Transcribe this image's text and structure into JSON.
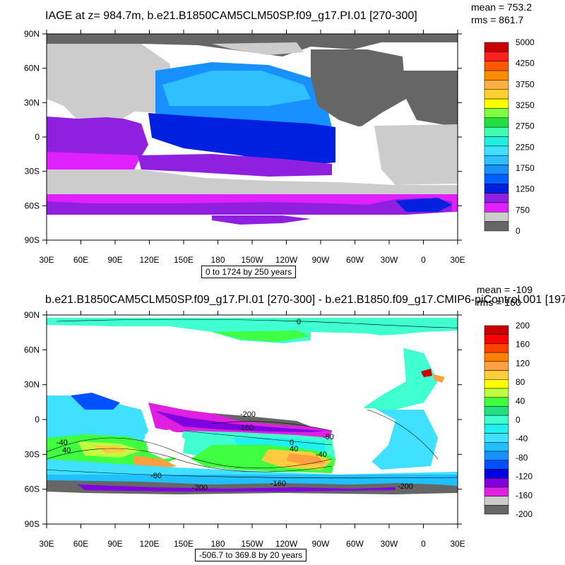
{
  "top_panel": {
    "title": "IAGE at z= 984.7m, b.e21.B1850CAM5CLM50SP.f09_g17.PI.01 [270-300]",
    "mean_text": "mean = 753.2",
    "rms_text": "rms = 861.7",
    "range_text": "0 to 1724 by 250 years",
    "colorbar": {
      "labels": [
        "5000",
        "4250",
        "3750",
        "3250",
        "2750",
        "2250",
        "1750",
        "1250",
        "750",
        "0"
      ],
      "colors": [
        "#c80000",
        "#ff2020",
        "#ff5a00",
        "#ff8c00",
        "#ffb040",
        "#ffd030",
        "#ffff00",
        "#80ff40",
        "#20e040",
        "#40ffb0",
        "#20f0e0",
        "#40e0ff",
        "#30c0ff",
        "#1890ff",
        "#0060ff",
        "#0020e0",
        "#9020e0",
        "#e020ff",
        "#cccccc",
        "#666666"
      ]
    }
  },
  "bottom_panel": {
    "title": "b.e21.B1850CAM5CLM50SP.f09_g17.PI.01 [270-300] - b.e21.B1850.f09_g17.CMIP6-piControl.001 [197",
    "mean_text": "mean = -109",
    "rms_text": "rms = 160",
    "range_text": "-506.7 to 369.8 by 20 years",
    "colorbar": {
      "labels": [
        "200",
        "160",
        "120",
        "80",
        "40",
        "0",
        "-40",
        "-80",
        "-120",
        "-160",
        "-200"
      ],
      "colors": [
        "#c80000",
        "#ff0000",
        "#ff4000",
        "#ff8000",
        "#ffa040",
        "#ffcc40",
        "#ffff00",
        "#c0ff40",
        "#40ff40",
        "#20e080",
        "#40ffd0",
        "#20f0f0",
        "#40e0ff",
        "#20c0ff",
        "#1890ff",
        "#0050ff",
        "#0000e0",
        "#8000e0",
        "#e020e0",
        "#cccccc",
        "#666666"
      ],
      "label_every": 2
    },
    "contour_labels": [
      "0",
      "-200",
      "-160",
      "-80",
      "-40",
      "40",
      "-40",
      "40",
      "0",
      "-80",
      "-200",
      "-160",
      "-200"
    ]
  },
  "axes": {
    "x_ticks": [
      "30E",
      "60E",
      "90E",
      "120E",
      "150E",
      "180",
      "150W",
      "120W",
      "90W",
      "60W",
      "30W",
      "0",
      "30E"
    ],
    "y_ticks": [
      "90N",
      "60N",
      "30N",
      "0",
      "30S",
      "60S",
      "90S"
    ]
  }
}
